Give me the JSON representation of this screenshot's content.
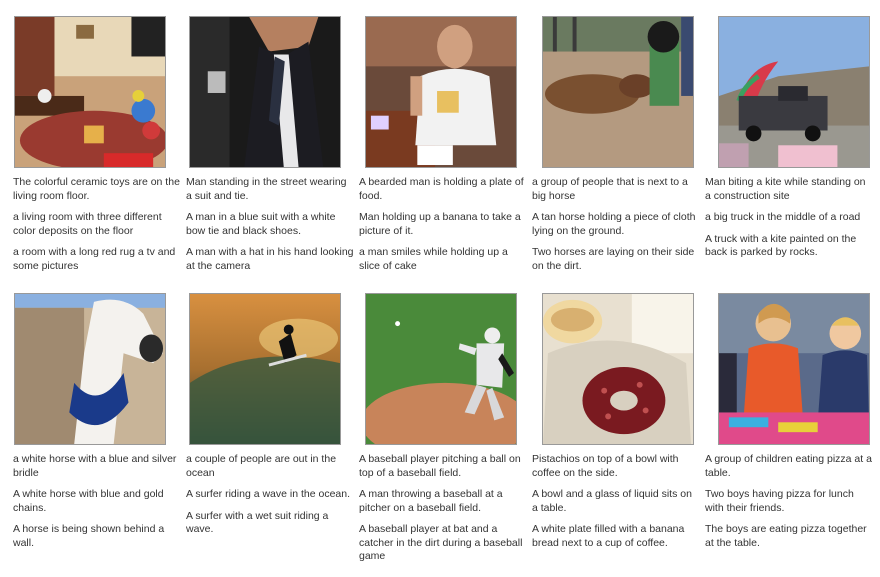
{
  "grid": {
    "items": [
      {
        "image": "living-room-toys-image",
        "captions": [
          "The colorful ceramic toys are on the living room floor.",
          "a living room with three different color deposits on the floor",
          "a room with a long red rug a tv and some pictures"
        ]
      },
      {
        "image": "man-suit-tie-image",
        "captions": [
          "Man standing in the street wearing a suit and tie.",
          "A man in a blue suit with a white bow tie and black shoes.",
          "A man with a hat in his hand looking at the camera"
        ]
      },
      {
        "image": "bearded-man-food-image",
        "captions": [
          "A bearded man is holding a plate of food.",
          "Man holding up a banana to take a picture of it.",
          "a man smiles while holding up a slice of cake"
        ]
      },
      {
        "image": "horse-lying-image",
        "captions": [
          "a group of people that is next to a big horse",
          "A tan horse holding a piece of cloth lying on the ground.",
          "Two horses are laying on their side on the dirt."
        ]
      },
      {
        "image": "truck-kite-image",
        "captions": [
          "Man biting a kite while standing on a construction site",
          "a big truck in the middle of a road",
          "A truck with a kite painted on the back is parked by rocks."
        ]
      },
      {
        "image": "white-horse-image",
        "captions": [
          "a white horse with a blue and silver bridle",
          "A white horse with blue and gold chains.",
          "A horse is being shown behind a wall."
        ]
      },
      {
        "image": "surfer-sunset-image",
        "captions": [
          "a couple of people are out in the ocean",
          "A surfer riding a wave in the ocean.",
          "A surfer with a wet suit riding a wave."
        ]
      },
      {
        "image": "baseball-pitcher-image",
        "captions": [
          "A baseball player pitching a ball on top of a baseball field.",
          "A man throwing a baseball at a pitcher on a baseball field.",
          "A baseball player at bat and a catcher in the dirt during a baseball game"
        ]
      },
      {
        "image": "pistachio-donut-image",
        "captions": [
          "Pistachios on top of a bowl with coffee on the side.",
          "A bowl and a glass of liquid sits on a table.",
          "A white plate filled with a banana bread next to a cup of coffee."
        ]
      },
      {
        "image": "children-pizza-image",
        "captions": [
          "A group of children eating pizza at a table.",
          "Two boys having pizza for lunch with their friends.",
          "The boys are eating pizza together at the table."
        ]
      }
    ]
  }
}
